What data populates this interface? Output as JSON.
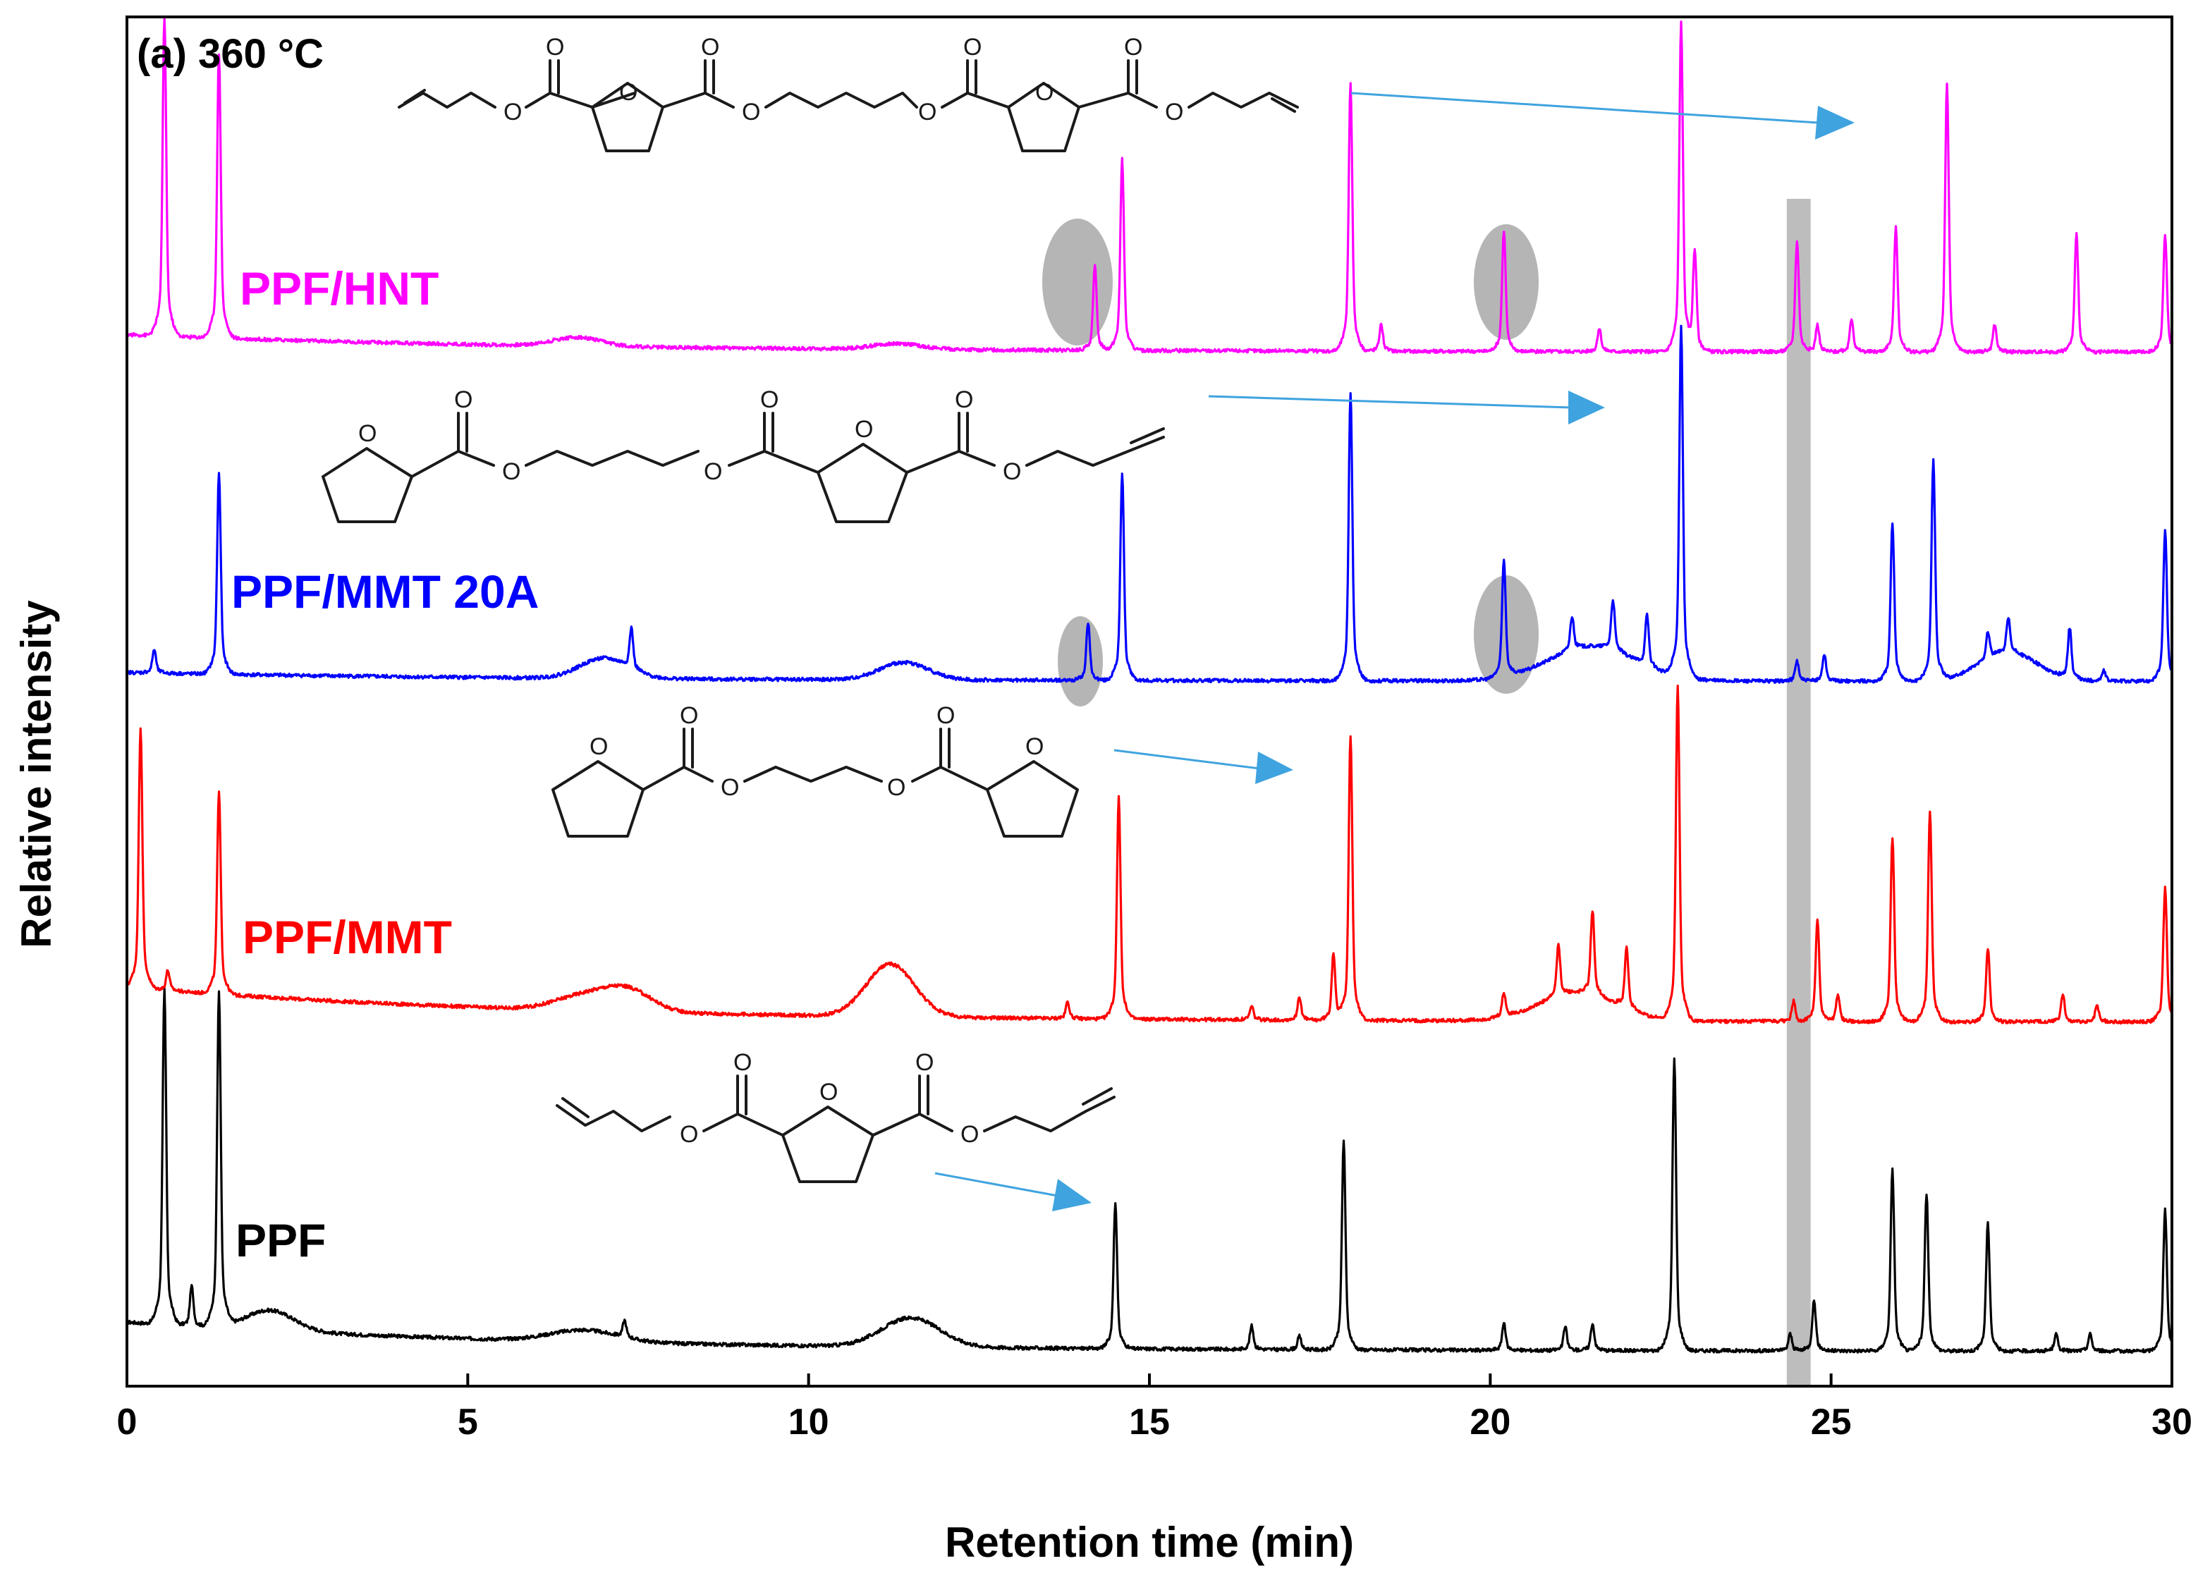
{
  "chart_data": {
    "type": "line",
    "title": "(a) 360 °C",
    "xlabel": "Retention time (min)",
    "ylabel": "Relative intensity",
    "xlim": [
      0,
      30
    ],
    "ylim": [
      0,
      4.7
    ],
    "x_ticks": [
      "0",
      "5",
      "10",
      "15",
      "20",
      "25",
      "30"
    ],
    "highlight_band_x": [
      24.35,
      24.7
    ],
    "series": [
      {
        "name": "PPF",
        "label": "PPF",
        "color": "#000000",
        "offset": 0.12,
        "baseline": 0.1,
        "ramps": [
          [
            2.1,
            0.07,
            0.5
          ],
          [
            6.7,
            0.04,
            0.7
          ],
          [
            11.5,
            0.1,
            0.6
          ]
        ],
        "peaks": [
          [
            0.55,
            1.0
          ],
          [
            0.95,
            0.12
          ],
          [
            1.35,
            1.0
          ],
          [
            7.3,
            0.05
          ],
          [
            14.5,
            0.43
          ],
          [
            16.5,
            0.07
          ],
          [
            17.2,
            0.04
          ],
          [
            17.85,
            0.62
          ],
          [
            20.2,
            0.08
          ],
          [
            21.1,
            0.07
          ],
          [
            21.5,
            0.08
          ],
          [
            22.7,
            0.87
          ],
          [
            24.4,
            0.05
          ],
          [
            24.75,
            0.15
          ],
          [
            25.9,
            0.54
          ],
          [
            26.4,
            0.47
          ],
          [
            27.3,
            0.38
          ],
          [
            28.3,
            0.05
          ],
          [
            28.8,
            0.05
          ],
          [
            29.9,
            0.42
          ]
        ]
      },
      {
        "name": "PPF/MMT",
        "label": "PPF/MMT",
        "color": "#ff0000",
        "offset": 1.25,
        "baseline": 0.12,
        "ramps": [
          [
            6.7,
            0.05,
            0.6
          ],
          [
            7.35,
            0.07,
            0.5
          ],
          [
            11.2,
            0.18,
            0.5
          ],
          [
            21.3,
            0.1,
            0.8
          ]
        ],
        "peaks": [
          [
            0.2,
            0.78
          ],
          [
            0.6,
            0.06
          ],
          [
            1.35,
            0.6
          ],
          [
            13.8,
            0.05
          ],
          [
            14.55,
            0.66
          ],
          [
            16.5,
            0.04
          ],
          [
            17.2,
            0.07
          ],
          [
            17.7,
            0.2
          ],
          [
            17.95,
            0.85
          ],
          [
            20.2,
            0.07
          ],
          [
            21.0,
            0.15
          ],
          [
            21.5,
            0.25
          ],
          [
            22.0,
            0.18
          ],
          [
            22.75,
            1.0
          ],
          [
            24.45,
            0.06
          ],
          [
            24.8,
            0.3
          ],
          [
            25.1,
            0.08
          ],
          [
            25.9,
            0.55
          ],
          [
            26.45,
            0.63
          ],
          [
            27.3,
            0.22
          ],
          [
            28.4,
            0.08
          ],
          [
            28.9,
            0.05
          ],
          [
            29.9,
            0.4
          ]
        ]
      },
      {
        "name": "PPF/MMT 20A",
        "label": "PPF/MMT 20A",
        "color": "#0000ff",
        "offset": 2.42,
        "baseline": 0.03,
        "ramps": [
          [
            7.0,
            0.07,
            0.5
          ],
          [
            11.4,
            0.06,
            0.5
          ],
          [
            21.5,
            0.12,
            0.9
          ],
          [
            27.6,
            0.1,
            0.6
          ]
        ],
        "peaks": [
          [
            0.4,
            0.07
          ],
          [
            1.35,
            0.6
          ],
          [
            7.4,
            0.12
          ],
          [
            14.1,
            0.17
          ],
          [
            14.6,
            0.62
          ],
          [
            17.95,
            0.86
          ],
          [
            20.2,
            0.35
          ],
          [
            21.2,
            0.1
          ],
          [
            21.8,
            0.15
          ],
          [
            22.3,
            0.15
          ],
          [
            22.8,
            1.05
          ],
          [
            24.5,
            0.06
          ],
          [
            24.9,
            0.08
          ],
          [
            25.9,
            0.47
          ],
          [
            26.5,
            0.66
          ],
          [
            27.3,
            0.08
          ],
          [
            27.6,
            0.1
          ],
          [
            28.5,
            0.15
          ],
          [
            29.0,
            0.03
          ],
          [
            29.9,
            0.45
          ]
        ]
      },
      {
        "name": "PPF/HNT",
        "label": "PPF/HNT",
        "color": "#ff00ff",
        "offset": 3.55,
        "baseline": 0.06,
        "ramps": [
          [
            6.6,
            0.03,
            0.5
          ],
          [
            11.3,
            0.02,
            0.5
          ]
        ],
        "peaks": [
          [
            0.55,
            0.95
          ],
          [
            1.35,
            0.85
          ],
          [
            14.2,
            0.25
          ],
          [
            14.6,
            0.57
          ],
          [
            17.95,
            0.8
          ],
          [
            18.4,
            0.08
          ],
          [
            20.2,
            0.36
          ],
          [
            21.6,
            0.07
          ],
          [
            22.8,
            0.98
          ],
          [
            23.0,
            0.3
          ],
          [
            24.5,
            0.33
          ],
          [
            24.8,
            0.08
          ],
          [
            25.3,
            0.1
          ],
          [
            25.95,
            0.37
          ],
          [
            26.7,
            0.8
          ],
          [
            27.4,
            0.08
          ],
          [
            28.6,
            0.35
          ],
          [
            29.9,
            0.35
          ]
        ]
      }
    ],
    "structures": [
      {
        "name": "diallyl-dimer-structure",
        "atoms": [
          "O",
          "O",
          "O",
          "O",
          "O",
          "O",
          "O",
          "O",
          "O",
          "O"
        ]
      },
      {
        "name": "furoate-allyl-structure",
        "atoms": [
          "O",
          "O",
          "O",
          "O",
          "O",
          "O",
          "O",
          "O"
        ]
      },
      {
        "name": "bis-furoate-structure",
        "atoms": [
          "O",
          "O",
          "O",
          "O",
          "O",
          "O"
        ]
      },
      {
        "name": "diallyl-furandicarboxylate-structure",
        "atoms": [
          "O",
          "O",
          "O",
          "O",
          "O"
        ]
      }
    ]
  },
  "colors": {
    "arrow": "#3fa3df",
    "highlight": "#bdbdbd",
    "axis": "#000000"
  }
}
